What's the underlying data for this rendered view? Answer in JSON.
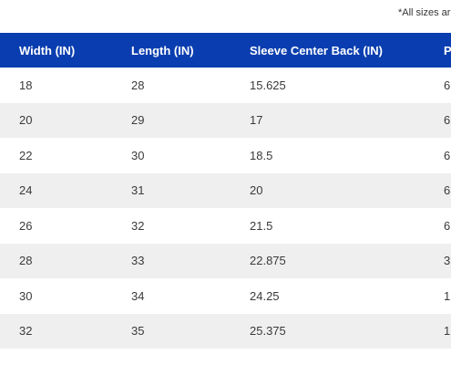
{
  "note": "*All sizes ar",
  "colors": {
    "header_bg": "#0a3eb0",
    "header_text": "#ffffff",
    "row_shade": "#efeff0",
    "row_plain": "#ffffff"
  },
  "columns": [
    "Width (IN)",
    "Length (IN)",
    "Sleeve Center Back (IN)",
    "P"
  ],
  "rows": [
    [
      "18",
      "28",
      "15.625",
      "6"
    ],
    [
      "20",
      "29",
      "17",
      "6"
    ],
    [
      "22",
      "30",
      "18.5",
      "6"
    ],
    [
      "24",
      "31",
      "20",
      "6"
    ],
    [
      "26",
      "32",
      "21.5",
      "6"
    ],
    [
      "28",
      "33",
      "22.875",
      "3"
    ],
    [
      "30",
      "34",
      "24.25",
      "1"
    ],
    [
      "32",
      "35",
      "25.375",
      "1"
    ]
  ]
}
